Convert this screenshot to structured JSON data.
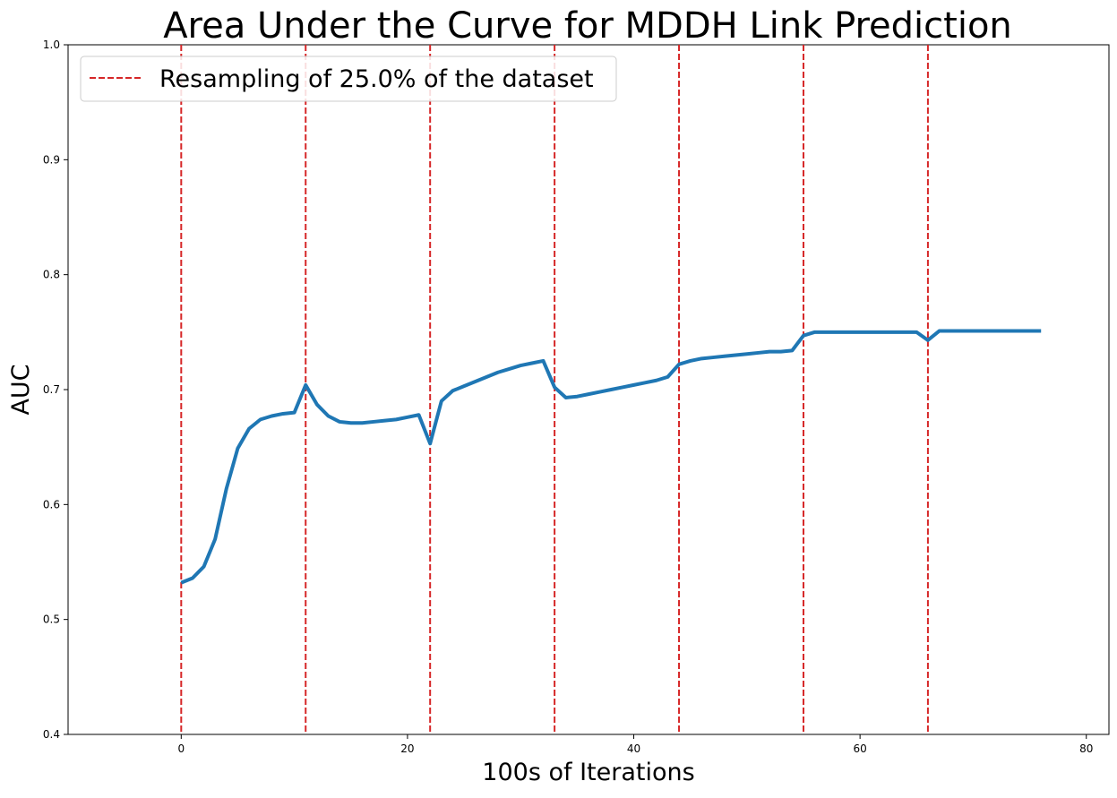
{
  "chart_data": {
    "type": "line",
    "title": "Area Under the Curve for MDDH Link Prediction",
    "xlabel": "100s of Iterations",
    "ylabel": "AUC",
    "xlim": [
      -10,
      82
    ],
    "ylim": [
      0.4,
      1.0
    ],
    "x_ticks": [
      0,
      20,
      40,
      60,
      80
    ],
    "x_tick_labels": [
      "0",
      "20",
      "40",
      "60",
      "80"
    ],
    "y_ticks": [
      0.4,
      0.5,
      0.6,
      0.7,
      0.8,
      0.9,
      1.0
    ],
    "y_tick_labels": [
      "0.4",
      "0.5",
      "0.6",
      "0.7",
      "0.8",
      "0.9",
      "1.0"
    ],
    "grid": false,
    "legend_position": "top-left",
    "legend_label": "Resampling of 25.0% of the dataset",
    "series": [
      {
        "name": "AUC",
        "color": "#1f77b4",
        "x": [
          0,
          1,
          2,
          3,
          4,
          5,
          6,
          7,
          8,
          9,
          10,
          11,
          12,
          13,
          14,
          15,
          16,
          17,
          18,
          19,
          20,
          21,
          22,
          23,
          24,
          25,
          26,
          27,
          28,
          29,
          30,
          31,
          32,
          33,
          34,
          35,
          36,
          37,
          38,
          39,
          40,
          41,
          42,
          43,
          44,
          45,
          46,
          47,
          48,
          49,
          50,
          51,
          52,
          53,
          54,
          55,
          56,
          57,
          58,
          59,
          60,
          61,
          62,
          63,
          64,
          65,
          66,
          67,
          68,
          69,
          70,
          71,
          72,
          73,
          74,
          75,
          76
        ],
        "values": [
          0.532,
          0.536,
          0.546,
          0.57,
          0.614,
          0.649,
          0.666,
          0.674,
          0.677,
          0.679,
          0.68,
          0.704,
          0.687,
          0.677,
          0.672,
          0.671,
          0.671,
          0.672,
          0.673,
          0.674,
          0.676,
          0.678,
          0.653,
          0.69,
          0.699,
          0.703,
          0.707,
          0.711,
          0.715,
          0.718,
          0.721,
          0.723,
          0.725,
          0.702,
          0.693,
          0.694,
          0.696,
          0.698,
          0.7,
          0.702,
          0.704,
          0.706,
          0.708,
          0.711,
          0.722,
          0.725,
          0.727,
          0.728,
          0.729,
          0.73,
          0.731,
          0.732,
          0.733,
          0.733,
          0.734,
          0.747,
          0.75,
          0.75,
          0.75,
          0.75,
          0.75,
          0.75,
          0.75,
          0.75,
          0.75,
          0.75,
          0.743,
          0.751,
          0.751,
          0.751,
          0.751,
          0.751,
          0.751,
          0.751,
          0.751,
          0.751,
          0.751
        ]
      }
    ],
    "vlines": {
      "name": "Resampling of 25.0% of the dataset",
      "color": "#d62728",
      "style": "dashed",
      "x": [
        0,
        11,
        22,
        33,
        44,
        55,
        66
      ]
    }
  }
}
